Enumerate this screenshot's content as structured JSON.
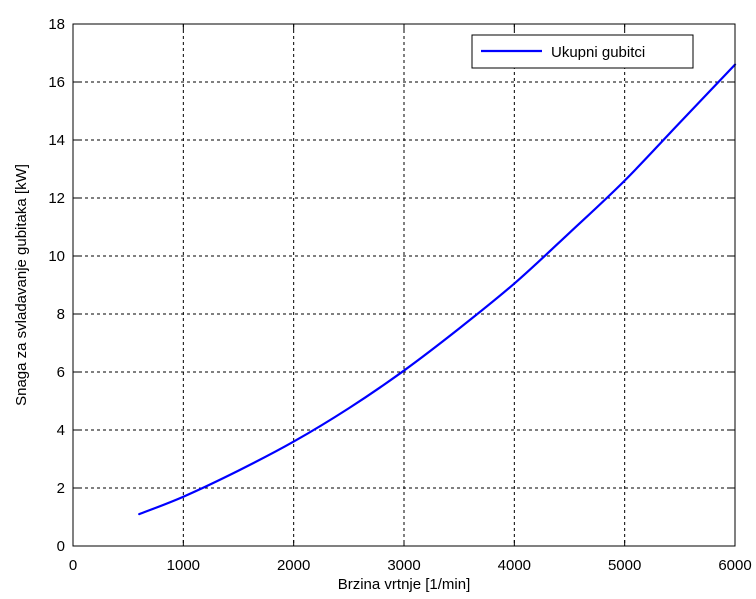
{
  "chart_data": {
    "type": "line",
    "title": "",
    "xlabel": "Brzina vrtnje [1/min]",
    "ylabel": "Snaga za svladavanje gubitaka [kW]",
    "xlim": [
      0,
      6000
    ],
    "ylim": [
      0,
      18
    ],
    "xticks": [
      0,
      1000,
      2000,
      3000,
      4000,
      5000,
      6000
    ],
    "yticks": [
      0,
      2,
      4,
      6,
      8,
      10,
      12,
      14,
      16,
      18
    ],
    "grid": true,
    "legend": "top-right",
    "series": [
      {
        "name": "Ukupni gubitci",
        "color": "#0000ff",
        "x": [
          600,
          1000,
          1500,
          2000,
          2500,
          3000,
          3500,
          4000,
          4500,
          5000,
          5500,
          6000
        ],
        "y": [
          1.1,
          1.7,
          2.6,
          3.6,
          4.75,
          6.05,
          7.5,
          9.05,
          10.8,
          12.6,
          14.6,
          16.6
        ]
      }
    ]
  }
}
